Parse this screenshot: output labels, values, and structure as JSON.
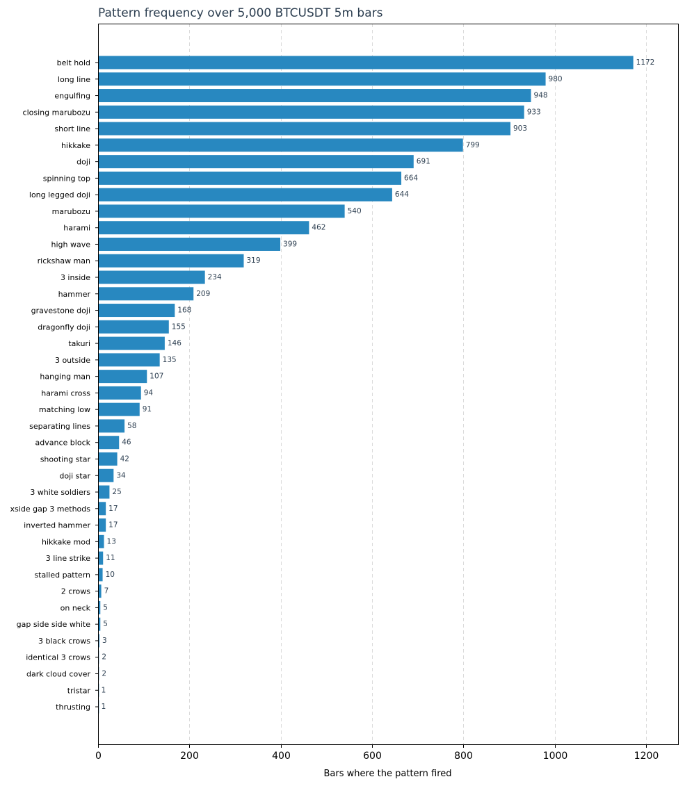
{
  "chart_data": {
    "type": "bar",
    "orientation": "horizontal",
    "title": "Pattern frequency over 5,000 BTCUSDT 5m bars",
    "xlabel": "Bars where the pattern fired",
    "ylabel": "",
    "xlim": [
      0,
      1270
    ],
    "xticks": [
      0,
      200,
      400,
      600,
      800,
      1000,
      1200
    ],
    "grid": "vertical-dashed",
    "bar_color": "#2888c0",
    "categories": [
      "belt hold",
      "long line",
      "engulfing",
      "closing marubozu",
      "short line",
      "hikkake",
      "doji",
      "spinning top",
      "long legged doji",
      "marubozu",
      "harami",
      "high wave",
      "rickshaw man",
      "3 inside",
      "hammer",
      "gravestone doji",
      "dragonfly doji",
      "takuri",
      "3 outside",
      "hanging man",
      "harami cross",
      "matching low",
      "separating lines",
      "advance block",
      "shooting star",
      "doji star",
      "3 white soldiers",
      "xside gap 3 methods",
      "inverted hammer",
      "hikkake mod",
      "3 line strike",
      "stalled pattern",
      "2 crows",
      "on neck",
      "gap side side white",
      "3 black crows",
      "identical 3 crows",
      "dark cloud cover",
      "tristar",
      "thrusting"
    ],
    "values": [
      1172,
      980,
      948,
      933,
      903,
      799,
      691,
      664,
      644,
      540,
      462,
      399,
      319,
      234,
      209,
      168,
      155,
      146,
      135,
      107,
      94,
      91,
      58,
      46,
      42,
      34,
      25,
      17,
      17,
      13,
      11,
      10,
      7,
      5,
      5,
      3,
      2,
      2,
      1,
      1
    ]
  }
}
